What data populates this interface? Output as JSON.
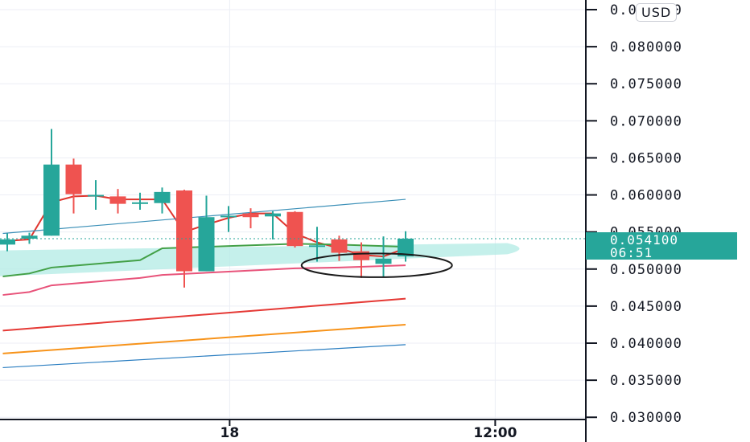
{
  "currency": "USD",
  "current_price": "0.054100",
  "countdown": "06:51",
  "colors": {
    "up": "#26a69a",
    "down": "#ef5350",
    "grid": "#eceef5",
    "axis": "#131722",
    "price_line": "#26a69a",
    "ma_red": "#e0362f",
    "band_green": "#43a047",
    "band_pink": "#e8537a",
    "env_red": "#e53935",
    "env_orange": "#f7931a",
    "env_blue": "#2b7ec1",
    "trend_blue": "#3a8fb7",
    "highlight": "#b2ebe4",
    "annotation": "#1a1a1a"
  },
  "chart_data": {
    "type": "candlestick",
    "ylim": [
      0.0297,
      0.0863
    ],
    "yticks": [
      0.03,
      0.035,
      0.04,
      0.045,
      0.05,
      0.055,
      0.06,
      0.065,
      0.07,
      0.075,
      0.08,
      0.085
    ],
    "ytick_labels": [
      "0.030000",
      "0.035000",
      "0.040000",
      "0.045000",
      "0.050000",
      "0.055000",
      "0.060000",
      "0.065000",
      "0.070000",
      "0.075000",
      "0.080000",
      "0.085000"
    ],
    "xticks": [
      {
        "label": "18",
        "index": 10.05
      },
      {
        "label": "12:00",
        "index": 22.05
      }
    ],
    "candles": [
      {
        "o": 0.0533,
        "h": 0.0548,
        "l": 0.0524,
        "c": 0.054
      },
      {
        "o": 0.0541,
        "h": 0.0549,
        "l": 0.0534,
        "c": 0.0545
      },
      {
        "o": 0.0545,
        "h": 0.0689,
        "l": 0.0545,
        "c": 0.0641
      },
      {
        "o": 0.0641,
        "h": 0.0649,
        "l": 0.0575,
        "c": 0.0601
      },
      {
        "o": 0.06,
        "h": 0.062,
        "l": 0.058,
        "c": 0.06
      },
      {
        "o": 0.0598,
        "h": 0.0608,
        "l": 0.0575,
        "c": 0.0588
      },
      {
        "o": 0.059,
        "h": 0.0603,
        "l": 0.058,
        "c": 0.059
      },
      {
        "o": 0.0589,
        "h": 0.061,
        "l": 0.0575,
        "c": 0.0604
      },
      {
        "o": 0.0606,
        "h": 0.0607,
        "l": 0.0475,
        "c": 0.0497
      },
      {
        "o": 0.0497,
        "h": 0.0599,
        "l": 0.0497,
        "c": 0.057
      },
      {
        "o": 0.0572,
        "h": 0.0585,
        "l": 0.055,
        "c": 0.0572
      },
      {
        "o": 0.0575,
        "h": 0.0582,
        "l": 0.0555,
        "c": 0.057
      },
      {
        "o": 0.0571,
        "h": 0.0578,
        "l": 0.054,
        "c": 0.0575
      },
      {
        "o": 0.0577,
        "h": 0.0578,
        "l": 0.0529,
        "c": 0.0531
      },
      {
        "o": 0.0532,
        "h": 0.0557,
        "l": 0.051,
        "c": 0.0532
      },
      {
        "o": 0.054,
        "h": 0.0545,
        "l": 0.0511,
        "c": 0.0522
      },
      {
        "o": 0.0524,
        "h": 0.0536,
        "l": 0.0488,
        "c": 0.0512
      },
      {
        "o": 0.0507,
        "h": 0.0544,
        "l": 0.0489,
        "c": 0.0514
      },
      {
        "o": 0.0517,
        "h": 0.0551,
        "l": 0.051,
        "c": 0.0541
      }
    ],
    "overlays": [
      {
        "color": "ma_red",
        "points": [
          [
            0,
            0.0538
          ],
          [
            1,
            0.054
          ],
          [
            2,
            0.059
          ],
          [
            3,
            0.0598
          ],
          [
            4,
            0.0599
          ],
          [
            5,
            0.0594
          ],
          [
            6,
            0.0594
          ],
          [
            7,
            0.0594
          ],
          [
            8,
            0.055
          ],
          [
            9,
            0.056
          ],
          [
            10,
            0.0569
          ],
          [
            11,
            0.0575
          ],
          [
            12,
            0.0575
          ],
          [
            13,
            0.0548
          ],
          [
            14,
            0.0536
          ],
          [
            15,
            0.0528
          ],
          [
            16,
            0.0519
          ],
          [
            17,
            0.0517
          ],
          [
            18,
            0.0528
          ]
        ]
      },
      {
        "color": "band_green",
        "points": [
          [
            -0.2,
            0.049
          ],
          [
            1,
            0.0494
          ],
          [
            2,
            0.0502
          ],
          [
            4,
            0.0507
          ],
          [
            6,
            0.0512
          ],
          [
            7,
            0.0528
          ],
          [
            9,
            0.053
          ],
          [
            11,
            0.0532
          ],
          [
            13,
            0.0534
          ],
          [
            15,
            0.0533
          ],
          [
            18,
            0.053
          ]
        ]
      },
      {
        "color": "band_pink",
        "points": [
          [
            -0.2,
            0.0465
          ],
          [
            1,
            0.0469
          ],
          [
            2,
            0.0478
          ],
          [
            4,
            0.0483
          ],
          [
            6,
            0.0488
          ],
          [
            7,
            0.0492
          ],
          [
            9,
            0.0495
          ],
          [
            11,
            0.0498
          ],
          [
            13,
            0.0501
          ],
          [
            15,
            0.0502
          ],
          [
            18,
            0.0505
          ]
        ]
      },
      {
        "color": "trend_blue",
        "points": [
          [
            -0.2,
            0.0548
          ],
          [
            18,
            0.0594
          ]
        ]
      },
      {
        "color": "env_red",
        "points": [
          [
            -0.2,
            0.0417
          ],
          [
            18,
            0.046
          ]
        ]
      },
      {
        "color": "env_orange",
        "points": [
          [
            -0.2,
            0.0386
          ],
          [
            18,
            0.0425
          ]
        ]
      },
      {
        "color": "env_blue",
        "points": [
          [
            -0.2,
            0.0367
          ],
          [
            18,
            0.0398
          ]
        ]
      }
    ],
    "highlight_band": {
      "x_start": -0.5,
      "x_end": 22.6,
      "y_start_lo": 0.049,
      "y_start_hi": 0.0525,
      "y_end_lo": 0.052,
      "y_end_hi": 0.0535
    },
    "annotation_ellipse": {
      "cx_index": 16.7,
      "cy": 0.0505,
      "rx_index": 3.4,
      "ry": 0.0016
    },
    "current_price": 0.0541
  }
}
